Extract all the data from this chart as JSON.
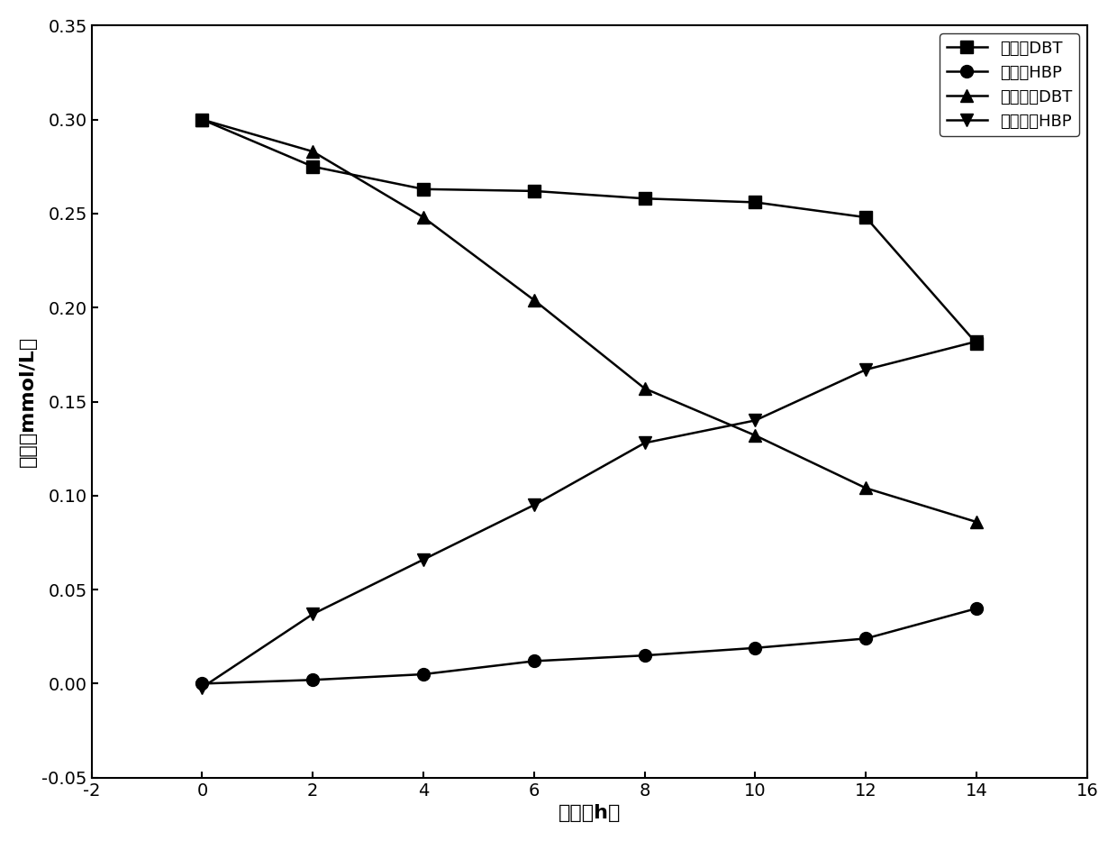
{
  "series": [
    {
      "key": "单水相DBT",
      "x": [
        0,
        2,
        4,
        6,
        8,
        10,
        12,
        14
      ],
      "y": [
        0.3,
        0.275,
        0.263,
        0.262,
        0.258,
        0.256,
        0.248,
        0.181
      ],
      "marker": "s",
      "label": "单水相DBT"
    },
    {
      "key": "单水相HBP",
      "x": [
        0,
        2,
        4,
        6,
        8,
        10,
        12,
        14
      ],
      "y": [
        0.0,
        0.002,
        0.005,
        0.012,
        0.015,
        0.019,
        0.024,
        0.04
      ],
      "marker": "o",
      "label": "单水相HBP"
    },
    {
      "key": "油水两相DBT",
      "x": [
        0,
        2,
        4,
        6,
        8,
        10,
        12,
        14
      ],
      "y": [
        0.3,
        0.283,
        0.248,
        0.204,
        0.157,
        0.132,
        0.104,
        0.086
      ],
      "marker": "^",
      "label": "油水两相DBT"
    },
    {
      "key": "油水两相HBP",
      "x": [
        0,
        2,
        4,
        6,
        8,
        10,
        12,
        14
      ],
      "y": [
        -0.002,
        0.037,
        0.066,
        0.095,
        0.128,
        0.14,
        0.167,
        0.182
      ],
      "marker": "v",
      "label": "油水两相HBP"
    }
  ],
  "xlim": [
    -2,
    16
  ],
  "ylim": [
    -0.05,
    0.35
  ],
  "xticks": [
    -2,
    0,
    2,
    4,
    6,
    8,
    10,
    12,
    14,
    16
  ],
  "yticks": [
    -0.05,
    0.0,
    0.05,
    0.1,
    0.15,
    0.2,
    0.25,
    0.3,
    0.35
  ],
  "ytick_labels": [
    "-0.05",
    "0.00",
    "0.05",
    "0.10",
    "0.15",
    "0.20",
    "0.25",
    "0.30",
    "0.35"
  ],
  "xlabel": "时间（h）",
  "ylabel": "浓度（mmol/L）",
  "line_color": "#000000",
  "marker_size": 10,
  "line_width": 1.8,
  "legend_fontsize": 13,
  "axis_fontsize": 16,
  "tick_fontsize": 14,
  "background_color": "#ffffff"
}
